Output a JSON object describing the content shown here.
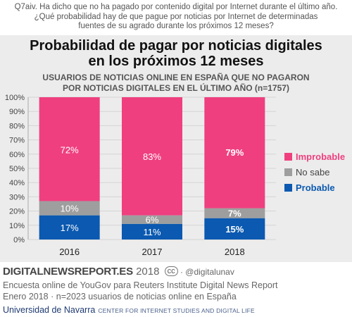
{
  "question": {
    "line1": "Q7aiv. Ha dicho que no ha pagado por contenido digital por Internet durante el último año.",
    "line2": "¿Qué probabilidad hay de que pague por noticias por Internet de determinadas",
    "line3": "fuentes de su agrado durante los próximos 12 meses?"
  },
  "colors": {
    "panel": "#ececec",
    "improbable": "#ef3f7f",
    "no_sabe": "#9e9e9e",
    "probable": "#0b59b0"
  },
  "chart_data": {
    "type": "bar",
    "stacked": true,
    "title": "Probabilidad de pagar por noticias digitales en los próximos 12 meses",
    "title_lines": [
      "Probabilidad de pagar por noticias digitales",
      "en los próximos 12 meses"
    ],
    "subtitle_lines": [
      "USUARIOS DE NOTICIAS ONLINE EN ESPAÑA QUE NO PAGARON",
      "POR NOTICIAS DIGITALES EN EL ÚLTIMO AÑO (n=1757)"
    ],
    "categories": [
      "2016",
      "2017",
      "2018"
    ],
    "series": [
      {
        "name": "Probable",
        "values": [
          17,
          11,
          15
        ],
        "labels": [
          "17%",
          "11%",
          "15%"
        ],
        "color": "#0b59b0"
      },
      {
        "name": "No sabe",
        "values": [
          10,
          6,
          7
        ],
        "labels": [
          "10%",
          "6%",
          "7%"
        ],
        "color": "#9e9e9e"
      },
      {
        "name": "Improbable",
        "values": [
          72,
          83,
          79
        ],
        "labels": [
          "72%",
          "83%",
          "79%"
        ],
        "color": "#ef3f7f"
      }
    ],
    "bold_category": "2018",
    "ylim": [
      0,
      100
    ],
    "yticks": [
      0,
      10,
      20,
      30,
      40,
      50,
      60,
      70,
      80,
      90,
      100
    ],
    "ytick_labels": [
      "0%",
      "10%",
      "20%",
      "30%",
      "40%",
      "50%",
      "60%",
      "70%",
      "80%",
      "90%",
      "100%"
    ],
    "grid": true,
    "legend": {
      "position": "right",
      "entries": [
        "Improbable",
        "No sabe",
        "Probable"
      ]
    }
  },
  "footer": {
    "brand": "DIGITALNEWSREPORT.ES",
    "year": " 2018",
    "license": "cc",
    "handle": " · @digitalunav",
    "line1": "Encuesta online de YouGov para Reuters Institute Digital News Report",
    "line2": "Enero 2018 · n=2023 usuarios de noticias online en España",
    "university": "Universidad de Navarra",
    "center": "CENTER FOR INTERNET STUDIES AND DIGITAL LIFE"
  }
}
